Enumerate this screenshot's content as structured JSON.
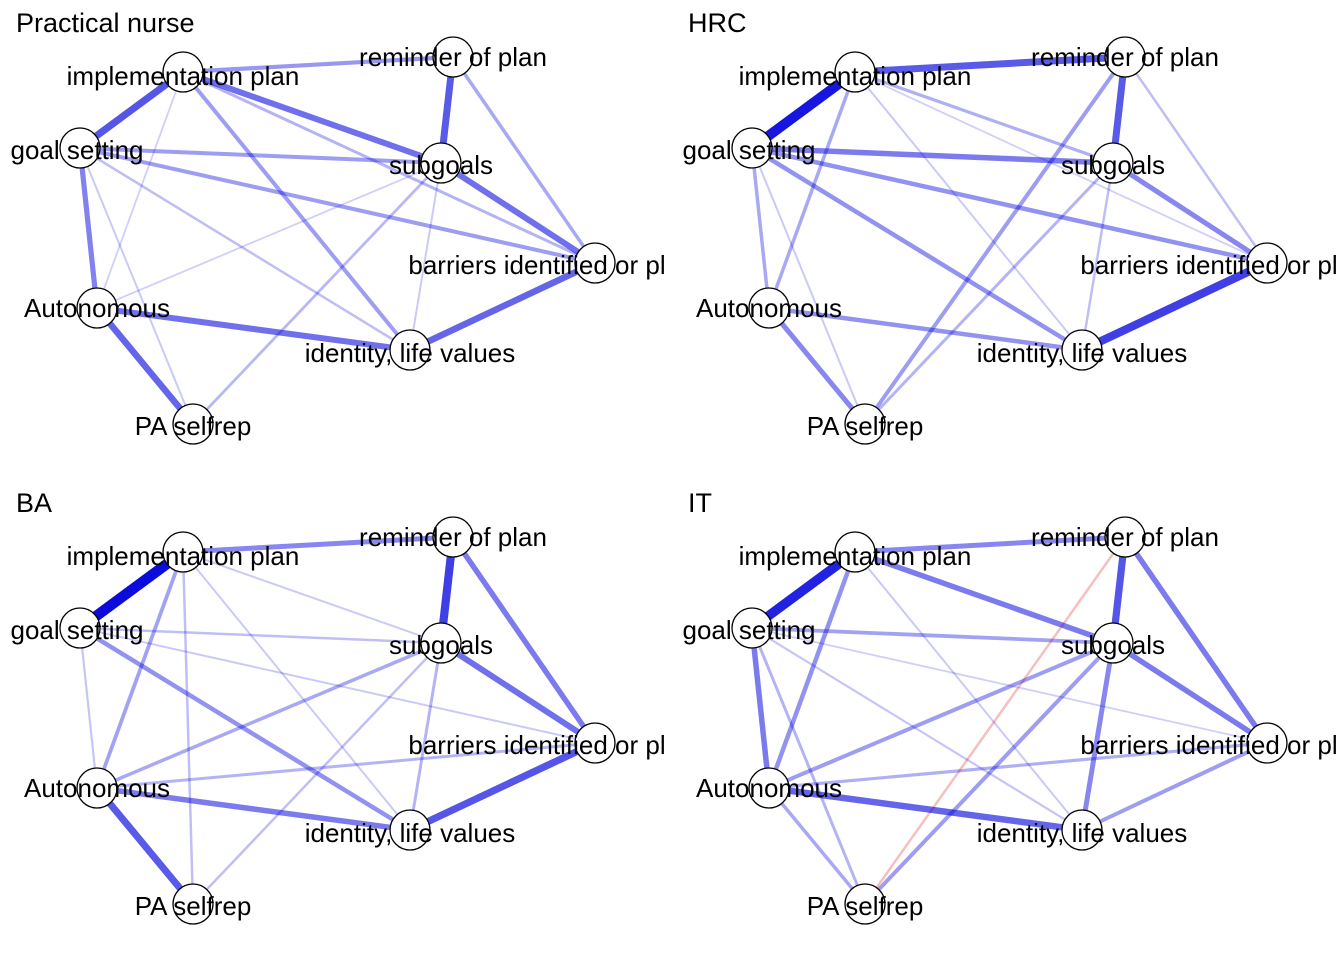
{
  "nodes": [
    {
      "id": "impl",
      "label": "implementation plan"
    },
    {
      "id": "rem",
      "label": "reminder of plan"
    },
    {
      "id": "goal",
      "label": "goal setting"
    },
    {
      "id": "sub",
      "label": "subgoals"
    },
    {
      "id": "bar",
      "label": "barriers identified or pl"
    },
    {
      "id": "auto",
      "label": "Autonomous"
    },
    {
      "id": "iden",
      "label": "identity, life values"
    },
    {
      "id": "pa",
      "label": "PA selfrep"
    }
  ],
  "colors": {
    "positive_edge": "#0000dd",
    "negative_edge": "#dd0000",
    "node_fill": "#ffffff",
    "node_stroke": "#000000"
  },
  "panels": [
    {
      "title": "Practical nurse",
      "edges": [
        [
          "impl",
          "goal",
          0.62
        ],
        [
          "impl",
          "rem",
          0.32
        ],
        [
          "rem",
          "sub",
          0.6
        ],
        [
          "impl",
          "sub",
          0.5
        ],
        [
          "goal",
          "sub",
          0.3
        ],
        [
          "goal",
          "auto",
          0.42
        ],
        [
          "auto",
          "pa",
          0.55
        ],
        [
          "auto",
          "iden",
          0.5
        ],
        [
          "iden",
          "bar",
          0.55
        ],
        [
          "sub",
          "bar",
          0.5
        ],
        [
          "rem",
          "bar",
          0.25
        ],
        [
          "goal",
          "bar",
          0.3
        ],
        [
          "impl",
          "bar",
          0.2
        ],
        [
          "impl",
          "iden",
          0.3
        ],
        [
          "goal",
          "iden",
          0.15
        ],
        [
          "sub",
          "pa",
          0.18
        ],
        [
          "goal",
          "pa",
          0.1
        ],
        [
          "sub",
          "auto",
          0.08
        ],
        [
          "sub",
          "iden",
          0.1
        ],
        [
          "impl",
          "auto",
          0.08
        ]
      ]
    },
    {
      "title": "HRC",
      "edges": [
        [
          "impl",
          "goal",
          0.9
        ],
        [
          "impl",
          "rem",
          0.6
        ],
        [
          "rem",
          "sub",
          0.6
        ],
        [
          "impl",
          "sub",
          0.22
        ],
        [
          "goal",
          "sub",
          0.45
        ],
        [
          "goal",
          "bar",
          0.35
        ],
        [
          "goal",
          "iden",
          0.35
        ],
        [
          "goal",
          "auto",
          0.25
        ],
        [
          "impl",
          "auto",
          0.25
        ],
        [
          "impl",
          "iden",
          0.1
        ],
        [
          "impl",
          "bar",
          0.08
        ],
        [
          "auto",
          "iden",
          0.35
        ],
        [
          "auto",
          "pa",
          0.4
        ],
        [
          "iden",
          "bar",
          0.72
        ],
        [
          "sub",
          "bar",
          0.4
        ],
        [
          "rem",
          "bar",
          0.15
        ],
        [
          "rem",
          "pa",
          0.3
        ],
        [
          "sub",
          "pa",
          0.2
        ],
        [
          "sub",
          "iden",
          0.15
        ],
        [
          "goal",
          "pa",
          0.1
        ]
      ]
    },
    {
      "title": "BA",
      "edges": [
        [
          "impl",
          "goal",
          0.95
        ],
        [
          "impl",
          "rem",
          0.4
        ],
        [
          "rem",
          "sub",
          0.72
        ],
        [
          "rem",
          "bar",
          0.45
        ],
        [
          "sub",
          "bar",
          0.5
        ],
        [
          "iden",
          "bar",
          0.62
        ],
        [
          "auto",
          "pa",
          0.6
        ],
        [
          "auto",
          "iden",
          0.45
        ],
        [
          "goal",
          "iden",
          0.35
        ],
        [
          "impl",
          "auto",
          0.28
        ],
        [
          "impl",
          "pa",
          0.15
        ],
        [
          "impl",
          "iden",
          0.1
        ],
        [
          "sub",
          "auto",
          0.25
        ],
        [
          "sub",
          "iden",
          0.2
        ],
        [
          "sub",
          "pa",
          0.15
        ],
        [
          "goal",
          "sub",
          0.15
        ],
        [
          "goal",
          "auto",
          0.12
        ],
        [
          "auto",
          "bar",
          0.2
        ],
        [
          "impl",
          "sub",
          0.1
        ],
        [
          "goal",
          "bar",
          0.1
        ]
      ]
    },
    {
      "title": "IT",
      "edges": [
        [
          "impl",
          "goal",
          0.85
        ],
        [
          "impl",
          "rem",
          0.4
        ],
        [
          "rem",
          "sub",
          0.62
        ],
        [
          "rem",
          "bar",
          0.45
        ],
        [
          "impl",
          "sub",
          0.45
        ],
        [
          "goal",
          "sub",
          0.28
        ],
        [
          "goal",
          "auto",
          0.45
        ],
        [
          "impl",
          "auto",
          0.35
        ],
        [
          "sub",
          "bar",
          0.45
        ],
        [
          "sub",
          "iden",
          0.4
        ],
        [
          "auto",
          "iden",
          0.55
        ],
        [
          "iden",
          "bar",
          0.3
        ],
        [
          "sub",
          "auto",
          0.3
        ],
        [
          "auto",
          "bar",
          0.22
        ],
        [
          "goal",
          "pa",
          0.2
        ],
        [
          "auto",
          "pa",
          0.25
        ],
        [
          "sub",
          "pa",
          0.3
        ],
        [
          "rem",
          "pa",
          -0.15
        ],
        [
          "goal",
          "iden",
          0.12
        ],
        [
          "impl",
          "iden",
          0.1
        ],
        [
          "goal",
          "bar",
          0.08
        ]
      ]
    }
  ]
}
